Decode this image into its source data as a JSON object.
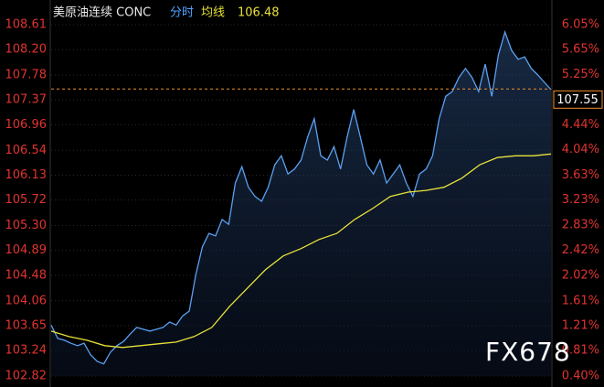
{
  "chart_data": {
    "type": "line",
    "title": "美原油连续 CONC",
    "mode_label": "分时",
    "average_label": "均线",
    "average_value": "106.48",
    "last_price": "107.55",
    "last_price_value": 107.55,
    "watermark": "FX678",
    "grid": true,
    "ylim": [
      102.82,
      108.61
    ],
    "yticks": [
      102.82,
      103.24,
      103.65,
      104.06,
      104.48,
      104.89,
      {
        "value": 105.3,
        "label": "105.30"
      },
      105.72,
      106.13,
      106.54,
      106.96,
      107.37,
      107.78,
      {
        "value": 108.2,
        "label": "108.20"
      },
      108.61
    ],
    "y2lim": [
      0.4,
      6.05
    ],
    "y2ticks": [
      {
        "value": 0.4,
        "label": "0.40%"
      },
      {
        "value": 0.81,
        "label": "0.81%"
      },
      {
        "value": 1.21,
        "label": "1.21%"
      },
      {
        "value": 1.61,
        "label": "1.61%"
      },
      {
        "value": 2.02,
        "label": "2.02%"
      },
      {
        "value": 2.42,
        "label": "2.42%"
      },
      {
        "value": 2.83,
        "label": "2.83%"
      },
      {
        "value": 3.23,
        "label": "3.23%"
      },
      {
        "value": 3.63,
        "label": "3.63%"
      },
      {
        "value": 4.04,
        "label": "4.04%"
      },
      {
        "value": 4.44,
        "label": "4.44%"
      },
      {
        "value": 5.25,
        "label": "5.25%"
      },
      {
        "value": 5.65,
        "label": "5.65%"
      },
      {
        "value": 6.05,
        "label": "6.05%"
      }
    ],
    "series": [
      {
        "name": "分时",
        "color": "#5aa0f0",
        "values": [
          103.66,
          103.44,
          103.41,
          103.36,
          103.32,
          103.36,
          103.17,
          103.06,
          103.02,
          103.21,
          103.32,
          103.39,
          103.51,
          103.62,
          103.59,
          103.56,
          103.59,
          103.62,
          103.71,
          103.66,
          103.81,
          103.89,
          104.49,
          104.95,
          105.17,
          105.13,
          105.4,
          105.32,
          106.0,
          106.27,
          105.93,
          105.78,
          105.7,
          105.93,
          106.3,
          106.45,
          106.15,
          106.23,
          106.38,
          106.76,
          107.06,
          106.45,
          106.38,
          106.6,
          106.23,
          106.76,
          107.21,
          106.76,
          106.3,
          106.15,
          106.38,
          106.0,
          106.15,
          106.3,
          106.0,
          105.78,
          106.15,
          106.23,
          106.45,
          107.06,
          107.43,
          107.51,
          107.74,
          107.89,
          107.74,
          107.51,
          107.96,
          107.43,
          108.11,
          108.49,
          108.19,
          108.04,
          108.08,
          107.89,
          107.78,
          107.66,
          107.54
        ]
      },
      {
        "name": "均线",
        "color": "#e8e23a",
        "values": [
          103.56,
          103.47,
          103.41,
          103.32,
          103.29,
          103.32,
          103.35,
          103.38,
          103.47,
          103.62,
          103.97,
          104.27,
          104.57,
          104.8,
          104.92,
          105.07,
          105.17,
          105.4,
          105.58,
          105.78,
          105.85,
          105.88,
          105.93,
          106.08,
          106.3,
          106.42,
          106.45,
          106.45,
          106.48
        ]
      }
    ]
  }
}
